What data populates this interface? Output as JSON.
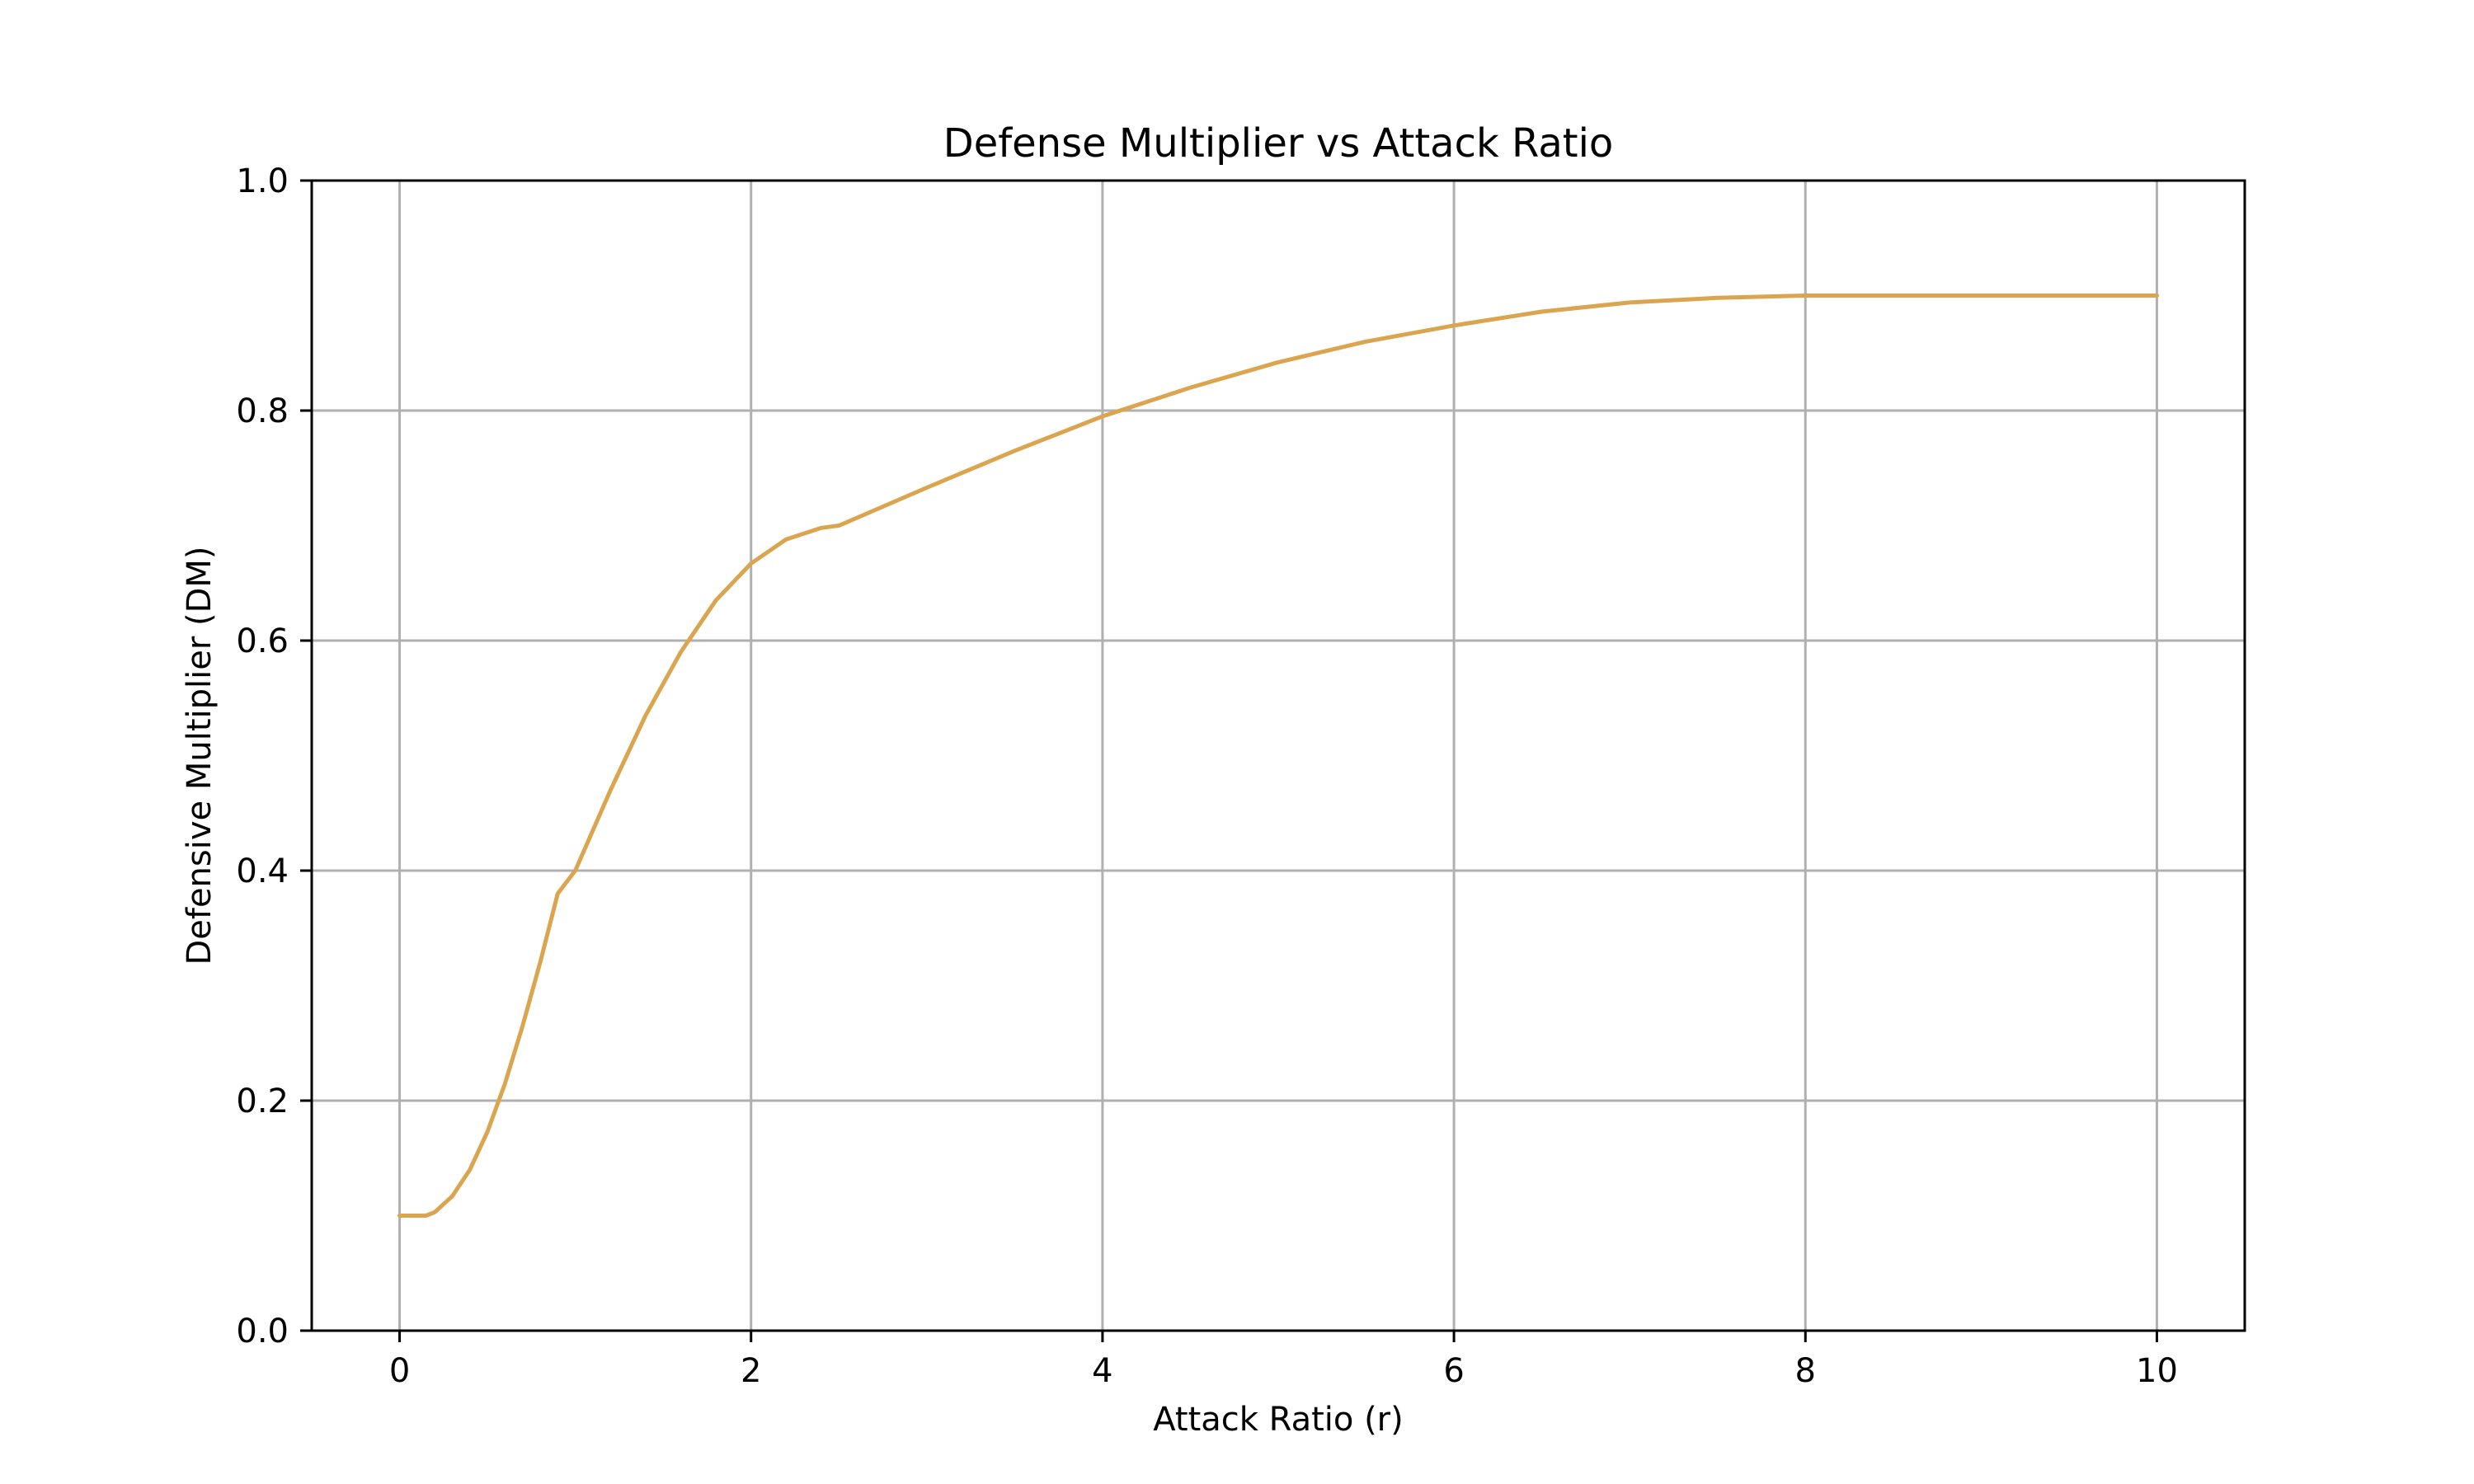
{
  "chart_data": {
    "type": "line",
    "title": "Defense Multiplier vs Attack Ratio",
    "xlabel": "Attack Ratio (r)",
    "ylabel": "Defensive Multiplier (DM)",
    "xlim": [
      -0.5,
      10.5
    ],
    "ylim": [
      0.0,
      1.0
    ],
    "xticks": [
      0,
      2,
      4,
      6,
      8,
      10
    ],
    "xtick_labels": [
      "0",
      "2",
      "4",
      "6",
      "8",
      "10"
    ],
    "yticks": [
      0.0,
      0.2,
      0.4,
      0.6,
      0.8,
      1.0
    ],
    "ytick_labels": [
      "0.0",
      "0.2",
      "0.4",
      "0.6",
      "0.8",
      "1.0"
    ],
    "grid": true,
    "series": [
      {
        "color": "#dba54f",
        "x": [
          0,
          0.15,
          0.2,
          0.3,
          0.4,
          0.5,
          0.6,
          0.7,
          0.8,
          0.9,
          1.0,
          1.2,
          1.4,
          1.6,
          1.8,
          2.0,
          2.2,
          2.4,
          2.5,
          3.0,
          3.5,
          4.0,
          4.5,
          5.0,
          5.5,
          6.0,
          6.5,
          7.0,
          7.5,
          8.0,
          9.0,
          10.0
        ],
        "y": [
          0.1,
          0.1,
          0.103,
          0.117,
          0.14,
          0.173,
          0.215,
          0.265,
          0.32,
          0.38,
          0.4,
          0.47,
          0.535,
          0.59,
          0.635,
          0.667,
          0.688,
          0.698,
          0.7,
          0.733,
          0.765,
          0.795,
          0.82,
          0.842,
          0.86,
          0.874,
          0.886,
          0.894,
          0.898,
          0.9,
          0.9,
          0.9
        ]
      }
    ]
  }
}
